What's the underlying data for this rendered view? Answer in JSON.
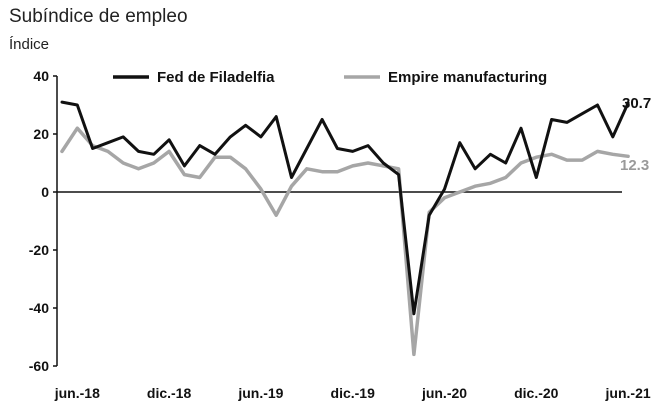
{
  "chart_data": {
    "type": "line",
    "title": "Subíndice de empleo",
    "ylabel": "Índice",
    "xlabel": "",
    "ylim": [
      -60,
      40
    ],
    "yticks": [
      40,
      20,
      0,
      -20,
      -40,
      -60
    ],
    "xtick_labels": [
      "jun.-18",
      "dic.-18",
      "jun.-19",
      "dic.-19",
      "jun.-20",
      "dic.-20",
      "jun.-21"
    ],
    "x_start": "2018-05",
    "legend_position": "top",
    "grid": false,
    "series": [
      {
        "name": "Fed de Filadelfia",
        "color": "#111111",
        "end_label": "30.7",
        "values": [
          31,
          30,
          15,
          17,
          19,
          14,
          13,
          18,
          9,
          16,
          13,
          19,
          23,
          19,
          26,
          5,
          15,
          25,
          15,
          14,
          16,
          10,
          6,
          -42,
          -8,
          1,
          17,
          8,
          13,
          10,
          22,
          5,
          25,
          24,
          27,
          30,
          19,
          30.7
        ]
      },
      {
        "name": "Empire manufacturing",
        "color": "#a6a6a6",
        "end_label": "12.3",
        "values": [
          14,
          22,
          16,
          14,
          10,
          8,
          10,
          14,
          6,
          5,
          12,
          12,
          8,
          1,
          -8,
          2,
          8,
          7,
          7,
          9,
          10,
          9,
          8,
          -56,
          -7,
          -2,
          0,
          2,
          3,
          5,
          10,
          12,
          13,
          11,
          11,
          14,
          13,
          12.3
        ]
      }
    ]
  }
}
